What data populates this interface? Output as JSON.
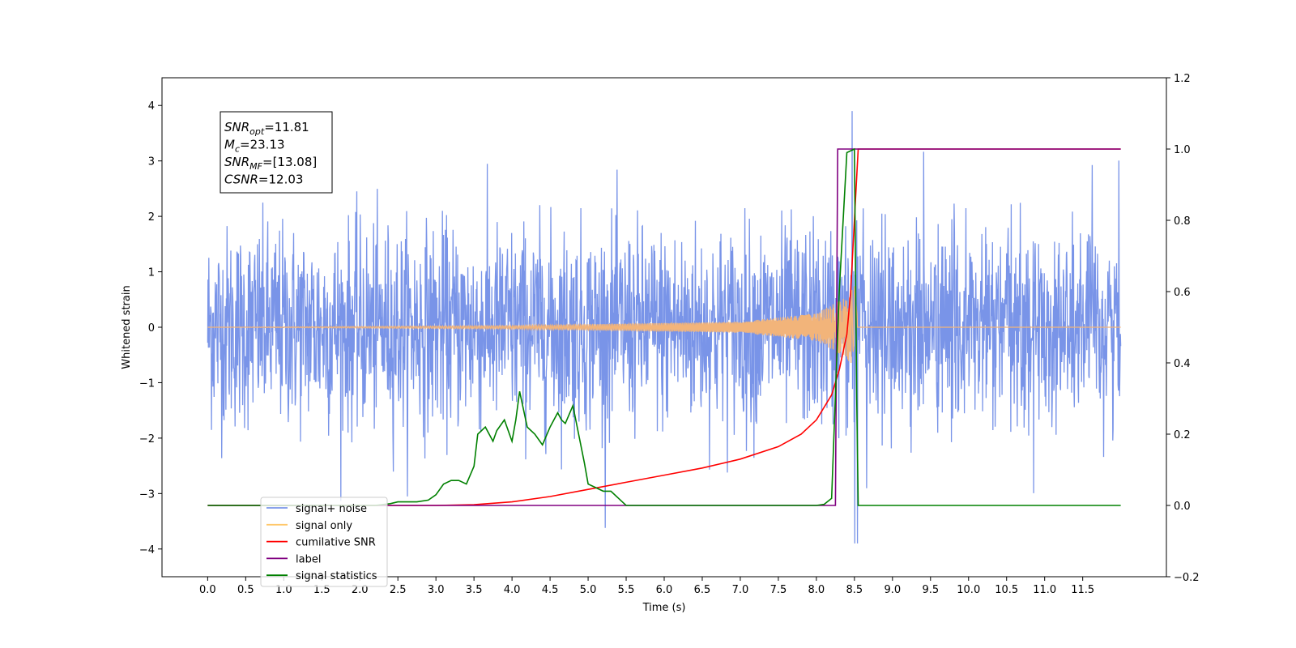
{
  "chart_data": {
    "type": "line",
    "xlabel": "Time (s)",
    "ylabel": "Whitened strain",
    "xlim": [
      -0.6,
      12.6
    ],
    "ylim": [
      -4.5,
      4.5
    ],
    "y2lim": [
      -0.2,
      1.2
    ],
    "x_ticks": [
      0.0,
      0.5,
      1.0,
      1.5,
      2.0,
      2.5,
      3.0,
      3.5,
      4.0,
      4.5,
      5.0,
      5.5,
      6.0,
      6.5,
      7.0,
      7.5,
      8.0,
      8.5,
      9.0,
      9.5,
      10.0,
      10.5,
      11.0,
      11.5
    ],
    "x_tick_labels": [
      "0.0",
      "0.5",
      "1.0",
      "1.5",
      "2.0",
      "2.5",
      "3.0",
      "3.5",
      "4.0",
      "4.5",
      "5.0",
      "5.5",
      "6.0",
      "6.5",
      "7.0",
      "7.5",
      "8.0",
      "8.5",
      "9.0",
      "9.5",
      "10.0",
      "10.5",
      "11.0",
      "11.5"
    ],
    "y_ticks": [
      -4,
      -3,
      -2,
      -1,
      0,
      1,
      2,
      3,
      4
    ],
    "y_tick_labels": [
      "−4",
      "−3",
      "−2",
      "−1",
      "0",
      "1",
      "2",
      "3",
      "4"
    ],
    "y2_ticks": [
      -0.2,
      0.0,
      0.2,
      0.4,
      0.6,
      0.8,
      1.0,
      1.2
    ],
    "y2_tick_labels": [
      "−0.2",
      "0.0",
      "0.2",
      "0.4",
      "0.6",
      "0.8",
      "1.0",
      "1.2"
    ],
    "grid": false,
    "legend_position": "lower-left",
    "legend": [
      {
        "label": "signal+ noise",
        "color": "#7994e8"
      },
      {
        "label": "signal only",
        "color": "#ffc86b"
      },
      {
        "label": "cumilative SNR",
        "color": "#ff0000"
      },
      {
        "label": "label",
        "color": "#800080"
      },
      {
        "label": "signal statistics",
        "color": "#008000"
      }
    ],
    "stats": [
      {
        "name": "SNR",
        "sub": "opt",
        "value": "=11.81"
      },
      {
        "name": "M",
        "sub": "c",
        "value": "=23.13"
      },
      {
        "name": "SNR",
        "sub": "MF",
        "value": "=[13.08]"
      },
      {
        "name": "CSNR",
        "sub": "",
        "value": "=12.03"
      }
    ],
    "series": [
      {
        "name": "signal+ noise",
        "axis": "left",
        "color": "#7994e8",
        "x_range": [
          0.0,
          12.0
        ],
        "description_values": {
          "mean": 0,
          "std": 0.9,
          "min": -4.1,
          "max": 4.05
        }
      },
      {
        "name": "signal only",
        "axis": "left",
        "color": "#f2b47a",
        "chirp_merger_time": 8.5,
        "amplitude_at": {
          "x": [
            0.0,
            4.0,
            7.0,
            8.0,
            8.4,
            8.5,
            8.55,
            12.0
          ],
          "y": [
            0.0,
            0.03,
            0.1,
            0.25,
            0.55,
            0.8,
            0.0,
            0.0
          ]
        }
      },
      {
        "name": "cumilative SNR",
        "axis": "right",
        "color": "#ff0000",
        "x": [
          0.0,
          2.0,
          3.0,
          3.5,
          4.0,
          4.5,
          5.0,
          5.5,
          6.0,
          6.5,
          7.0,
          7.5,
          7.8,
          8.0,
          8.2,
          8.3,
          8.4,
          8.45,
          8.5,
          8.55,
          12.0
        ],
        "y": [
          0.0,
          0.0,
          0.0,
          0.002,
          0.01,
          0.025,
          0.045,
          0.065,
          0.085,
          0.105,
          0.13,
          0.165,
          0.2,
          0.24,
          0.31,
          0.38,
          0.48,
          0.6,
          0.8,
          1.0,
          1.0
        ]
      },
      {
        "name": "label",
        "axis": "right",
        "color": "#800080",
        "x": [
          0.0,
          8.25,
          8.28,
          8.55,
          12.0
        ],
        "y": [
          0.0,
          0.0,
          1.0,
          1.0,
          1.0
        ]
      },
      {
        "name": "signal statistics",
        "axis": "right",
        "color": "#008000",
        "x": [
          0.0,
          2.2,
          2.4,
          2.5,
          2.6,
          2.75,
          2.9,
          3.0,
          3.1,
          3.2,
          3.3,
          3.4,
          3.5,
          3.55,
          3.65,
          3.75,
          3.8,
          3.9,
          4.0,
          4.05,
          4.1,
          4.2,
          4.3,
          4.4,
          4.5,
          4.6,
          4.65,
          4.7,
          4.8,
          4.95,
          5.0,
          5.1,
          5.2,
          5.3,
          5.5,
          8.0,
          8.1,
          8.2,
          8.3,
          8.4,
          8.5,
          8.53,
          8.55,
          12.0
        ],
        "y": [
          0.0,
          0.0,
          0.005,
          0.01,
          0.01,
          0.01,
          0.015,
          0.03,
          0.06,
          0.07,
          0.07,
          0.06,
          0.11,
          0.2,
          0.22,
          0.18,
          0.21,
          0.24,
          0.18,
          0.24,
          0.32,
          0.22,
          0.2,
          0.17,
          0.22,
          0.26,
          0.24,
          0.23,
          0.28,
          0.12,
          0.06,
          0.05,
          0.04,
          0.04,
          0.0,
          0.0,
          0.003,
          0.02,
          0.6,
          0.99,
          1.0,
          0.3,
          0.0,
          0.0
        ]
      }
    ]
  }
}
